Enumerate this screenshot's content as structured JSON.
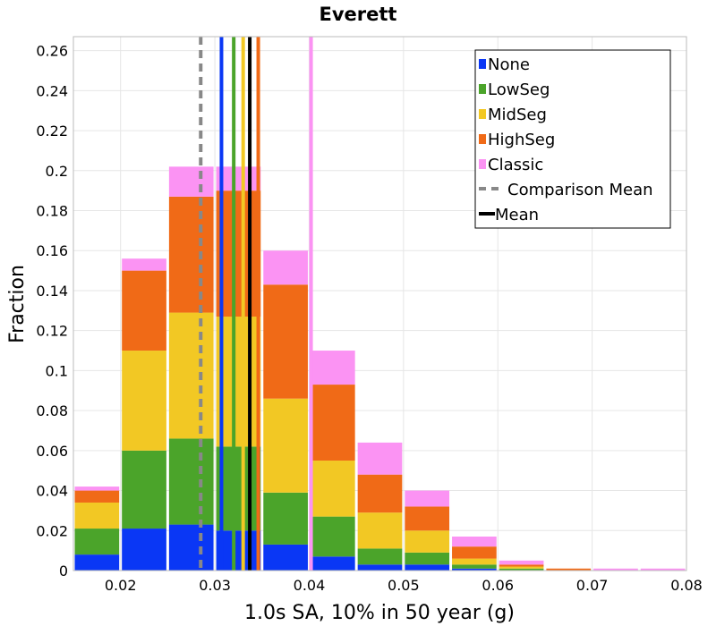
{
  "chart_data": {
    "type": "bar",
    "stacked": true,
    "title": "Everett",
    "xlabel": "1.0s SA, 10% in 50 year (g)",
    "ylabel": "Fraction",
    "xlim": [
      0.015,
      0.08
    ],
    "ylim": [
      0,
      0.267
    ],
    "grid": true,
    "legend_position": "top-right",
    "x_ticks": [
      "0.02",
      "0.03",
      "0.04",
      "0.05",
      "0.06",
      "0.07",
      "0.08"
    ],
    "x_tick_values": [
      0.02,
      0.03,
      0.04,
      0.05,
      0.06,
      0.07,
      0.08
    ],
    "y_ticks": [
      "0",
      "0.02",
      "0.04",
      "0.06",
      "0.08",
      "0.1",
      "0.12",
      "0.14",
      "0.16",
      "0.18",
      "0.2",
      "0.22",
      "0.24",
      "0.26"
    ],
    "y_tick_values": [
      0,
      0.02,
      0.04,
      0.06,
      0.08,
      0.1,
      0.12,
      0.14,
      0.16,
      0.18,
      0.2,
      0.22,
      0.24,
      0.26
    ],
    "bin_width": 0.005,
    "bin_centers": [
      0.0175,
      0.0225,
      0.0275,
      0.0325,
      0.0375,
      0.0425,
      0.0475,
      0.0525,
      0.0575,
      0.0625,
      0.0675,
      0.0725,
      0.0775
    ],
    "series": [
      {
        "name": "None",
        "color": "#0a37f5",
        "values": [
          0.008,
          0.021,
          0.023,
          0.02,
          0.013,
          0.007,
          0.003,
          0.003,
          0.001,
          0.0,
          0.0,
          0.0,
          0.0
        ]
      },
      {
        "name": "LowSeg",
        "color": "#4ba42a",
        "values": [
          0.013,
          0.039,
          0.043,
          0.042,
          0.026,
          0.02,
          0.008,
          0.006,
          0.002,
          0.001,
          0.0,
          0.0,
          0.0
        ]
      },
      {
        "name": "MidSeg",
        "color": "#f2c824",
        "values": [
          0.013,
          0.05,
          0.063,
          0.065,
          0.047,
          0.028,
          0.018,
          0.011,
          0.003,
          0.001,
          0.0,
          0.0,
          0.0
        ]
      },
      {
        "name": "HighSeg",
        "color": "#f06a17",
        "values": [
          0.006,
          0.04,
          0.058,
          0.063,
          0.057,
          0.038,
          0.019,
          0.012,
          0.006,
          0.001,
          0.001,
          0.0,
          0.0
        ]
      },
      {
        "name": "Classic",
        "color": "#fb93f3",
        "values": [
          0.002,
          0.006,
          0.015,
          0.012,
          0.017,
          0.017,
          0.016,
          0.008,
          0.005,
          0.002,
          0.0,
          0.001,
          0.001
        ]
      }
    ],
    "vertical_lines": [
      {
        "series": "None",
        "x": 0.0307,
        "color": "#0a37f5",
        "style": "solid"
      },
      {
        "series": "LowSeg",
        "x": 0.032,
        "color": "#4ba42a",
        "style": "solid"
      },
      {
        "series": "MidSeg",
        "x": 0.033,
        "color": "#f2c824",
        "style": "solid"
      },
      {
        "series": "HighSeg",
        "x": 0.0346,
        "color": "#f06a17",
        "style": "solid"
      },
      {
        "series": "Classic",
        "x": 0.0402,
        "color": "#fb93f3",
        "style": "solid"
      },
      {
        "series": "Comparison Mean",
        "x": 0.0285,
        "color": "#888888",
        "style": "dashed"
      },
      {
        "series": "Mean",
        "x": 0.0337,
        "color": "#000000",
        "style": "solid"
      }
    ],
    "legend": [
      {
        "label": "None",
        "color": "#0a37f5",
        "kind": "box"
      },
      {
        "label": "LowSeg",
        "color": "#4ba42a",
        "kind": "box"
      },
      {
        "label": "MidSeg",
        "color": "#f2c824",
        "kind": "box"
      },
      {
        "label": "HighSeg",
        "color": "#f06a17",
        "kind": "box"
      },
      {
        "label": "Classic",
        "color": "#fb93f3",
        "kind": "box"
      },
      {
        "label": "Comparison Mean",
        "color": "#888888",
        "kind": "dashed"
      },
      {
        "label": "Mean",
        "color": "#000000",
        "kind": "line"
      }
    ]
  }
}
